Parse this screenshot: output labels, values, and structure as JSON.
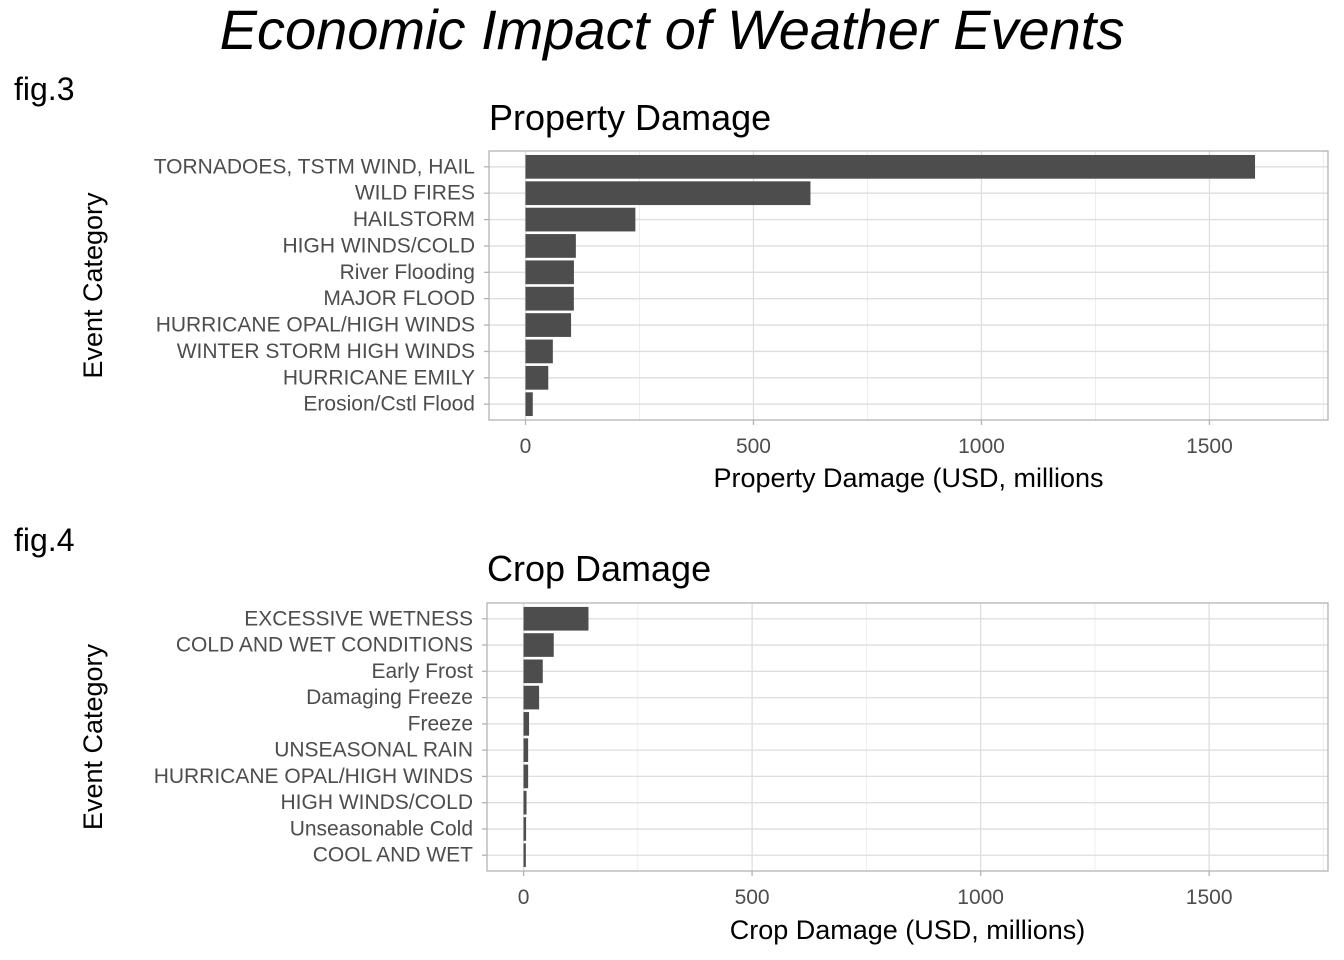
{
  "main_title": "Economic Impact of Weather Events",
  "colors": {
    "bar": "#4d4d4d",
    "grid_major": "#dedede",
    "grid_minor": "#eeeeee",
    "panel_border": "#b3b3b3"
  },
  "chart_data": [
    {
      "fig_label": "fig.3",
      "type": "bar",
      "orientation": "horizontal",
      "title": "Property Damage",
      "xlabel": "Property Damage (USD, millions",
      "ylabel": "Event Category",
      "xlim": [
        -80,
        1760
      ],
      "xticks": [
        0,
        500,
        1000,
        1500
      ],
      "grid": true,
      "categories": [
        "TORNADOES, TSTM WIND, HAIL",
        "WILD FIRES",
        "HAILSTORM",
        "HIGH WINDS/COLD",
        "River Flooding",
        "MAJOR FLOOD",
        "HURRICANE OPAL/HIGH WINDS",
        "WINTER STORM HIGH WINDS",
        "HURRICANE EMILY",
        "Erosion/Cstl Flood"
      ],
      "values": [
        1600,
        625,
        241,
        110.5,
        106.3,
        106.1,
        100,
        60,
        50,
        16
      ]
    },
    {
      "fig_label": "fig.4",
      "type": "bar",
      "orientation": "horizontal",
      "title": "Crop Damage",
      "xlabel": "Crop Damage (USD, millions)",
      "ylabel": "Event Category",
      "xlim": [
        -80,
        1760
      ],
      "xticks": [
        0,
        500,
        1000,
        1500
      ],
      "grid": true,
      "categories": [
        "EXCESSIVE WETNESS",
        "COLD AND WET CONDITIONS",
        "Early Frost",
        "Damaging Freeze",
        "Freeze",
        "UNSEASONAL RAIN",
        "HURRICANE OPAL/HIGH WINDS",
        "HIGH WINDS/COLD",
        "Unseasonable Cold",
        "COOL AND WET"
      ],
      "values": [
        142,
        66,
        42,
        34,
        12,
        10,
        10,
        6.5,
        5.5,
        5
      ]
    }
  ]
}
